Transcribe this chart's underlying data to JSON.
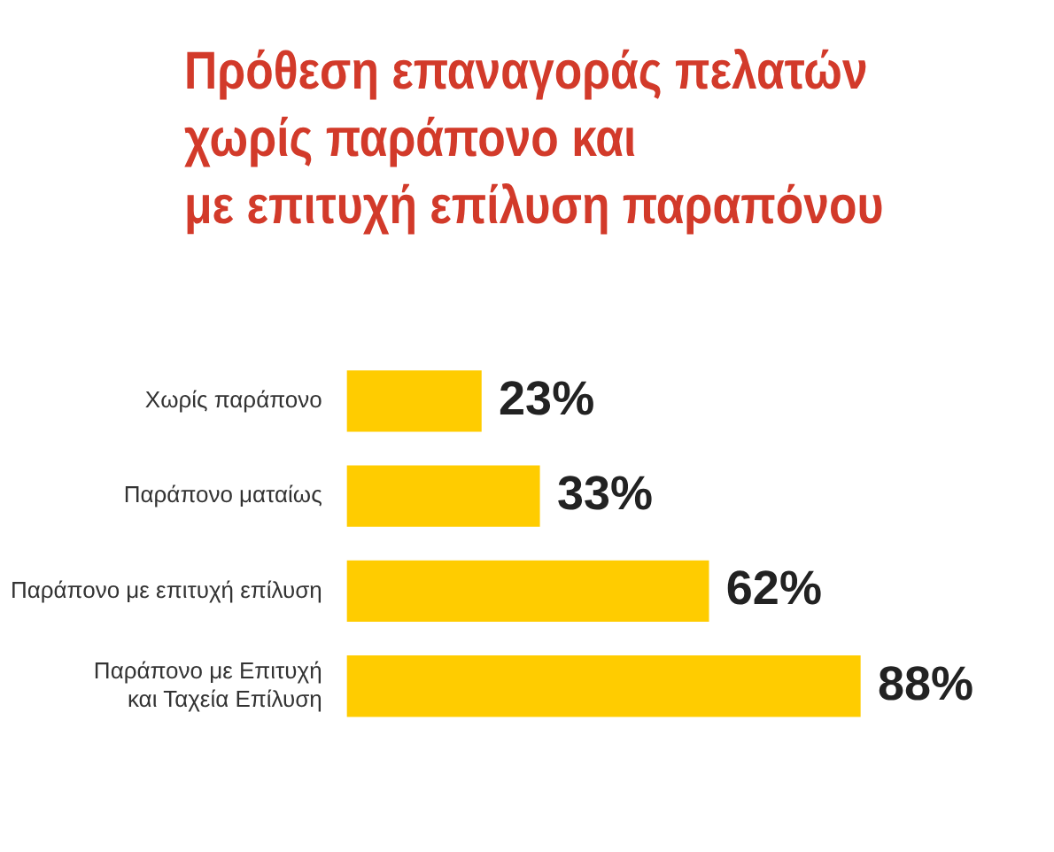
{
  "chart_data": {
    "type": "bar",
    "orientation": "horizontal",
    "title": "Πρόθεση επαναγοράς πελατών\nχωρίς παράπονο και\nμε επιτυχή επίλυση παραπόνου",
    "categories": [
      "Χωρίς παράπονο",
      "Παράπονο ματαίως",
      "Παράπονο με επιτυχή επίλυση",
      "Παράπονο με Επιτυχή\nκαι Ταχεία Επίλυση"
    ],
    "values": [
      23,
      33,
      62,
      88
    ],
    "color": "#ffcc00",
    "value_labels": [
      "23%",
      "33%",
      "62%",
      "88%"
    ],
    "grid": false,
    "legend": false
  }
}
